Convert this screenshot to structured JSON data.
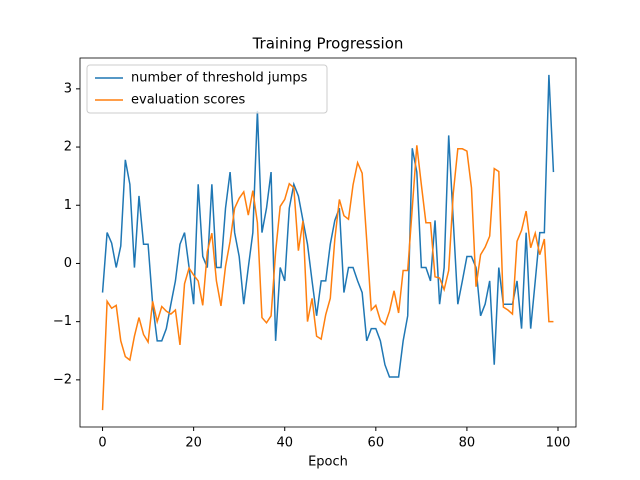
{
  "chart_data": {
    "type": "line",
    "title": "Training Progression",
    "x_label": "Epoch",
    "x": [
      0,
      1,
      2,
      3,
      4,
      5,
      6,
      7,
      8,
      9,
      10,
      11,
      12,
      13,
      14,
      15,
      16,
      17,
      18,
      19,
      20,
      21,
      22,
      23,
      24,
      25,
      26,
      27,
      28,
      29,
      30,
      31,
      32,
      33,
      34,
      35,
      36,
      37,
      38,
      39,
      40,
      41,
      42,
      43,
      44,
      45,
      46,
      47,
      48,
      49,
      50,
      51,
      52,
      53,
      54,
      55,
      56,
      57,
      58,
      59,
      60,
      61,
      62,
      63,
      64,
      65,
      66,
      67,
      68,
      69,
      70,
      71,
      72,
      73,
      74,
      75,
      76,
      77,
      78,
      79,
      80,
      81,
      82,
      83,
      84,
      85,
      86,
      87,
      88,
      89,
      90,
      91,
      92,
      93,
      94,
      95,
      96,
      97,
      98,
      99
    ],
    "series": [
      {
        "name": "number of threshold jumps",
        "color": "#1f77b4",
        "values": [
          -0.5,
          0.53,
          0.35,
          -0.07,
          0.3,
          1.78,
          1.36,
          -0.07,
          1.16,
          0.33,
          0.33,
          -0.7,
          -1.33,
          -1.33,
          -1.12,
          -0.7,
          -0.3,
          0.33,
          0.53,
          -0.07,
          -0.7,
          1.36,
          0.12,
          -0.07,
          1.36,
          -0.07,
          -0.07,
          0.95,
          1.57,
          0.53,
          0.12,
          -0.7,
          -0.07,
          0.53,
          2.62,
          0.53,
          0.95,
          1.57,
          -1.33,
          -0.07,
          -0.3,
          0.95,
          1.36,
          1.16,
          0.74,
          0.33,
          -0.3,
          -0.9,
          -0.3,
          -0.3,
          0.33,
          0.74,
          0.95,
          -0.5,
          -0.07,
          -0.07,
          -0.3,
          -0.5,
          -1.33,
          -1.12,
          -1.12,
          -1.33,
          -1.74,
          -1.95,
          -1.95,
          -1.95,
          -1.33,
          -0.9,
          1.98,
          1.57,
          -0.07,
          -0.07,
          -0.3,
          0.74,
          -0.7,
          -0.07,
          2.2,
          0.74,
          -0.7,
          -0.3,
          0.12,
          0.12,
          -0.07,
          -0.9,
          -0.7,
          -0.3,
          -1.74,
          -0.07,
          -0.7,
          -0.7,
          -0.7,
          -0.3,
          -1.12,
          0.53,
          -1.12,
          -0.3,
          0.53,
          0.53,
          3.24,
          1.57
        ]
      },
      {
        "name": "evaluation scores",
        "color": "#ff7f0e",
        "values": [
          -2.52,
          -0.65,
          -0.77,
          -0.72,
          -1.33,
          -1.6,
          -1.66,
          -1.25,
          -0.93,
          -1.22,
          -1.35,
          -0.65,
          -1.0,
          -0.74,
          -0.82,
          -0.87,
          -0.8,
          -1.4,
          -0.35,
          -0.08,
          -0.2,
          -0.3,
          -0.72,
          0.2,
          0.52,
          -0.3,
          -0.73,
          -0.05,
          0.38,
          0.95,
          1.12,
          1.23,
          0.83,
          1.25,
          0.7,
          -0.93,
          -1.02,
          -0.9,
          0.2,
          0.98,
          1.1,
          1.37,
          1.3,
          0.22,
          0.73,
          -1.0,
          -0.6,
          -1.25,
          -1.3,
          -0.88,
          -0.6,
          0.42,
          1.1,
          0.82,
          0.76,
          1.35,
          1.73,
          1.55,
          0.4,
          -0.8,
          -0.72,
          -0.98,
          -1.05,
          -0.82,
          -0.47,
          -0.85,
          -0.12,
          -0.12,
          0.95,
          2.03,
          1.35,
          0.7,
          0.7,
          -0.23,
          -0.25,
          -0.45,
          -0.12,
          1.2,
          1.97,
          1.97,
          1.93,
          1.3,
          -0.4,
          0.15,
          0.28,
          0.47,
          1.63,
          1.58,
          -0.75,
          -0.8,
          -0.87,
          0.38,
          0.57,
          0.9,
          0.27,
          0.52,
          0.15,
          0.42,
          -1.0,
          -1.0
        ]
      }
    ],
    "xlim": [
      -4.95,
      103.95
    ],
    "ylim": [
      -2.81,
      3.53
    ],
    "xticks": [
      0,
      20,
      40,
      60,
      80,
      100
    ],
    "yticks": [
      {
        "value": -2,
        "label": "−2"
      },
      {
        "value": -1,
        "label": "−1"
      },
      0,
      1,
      2,
      3
    ],
    "legend": "upper left"
  }
}
